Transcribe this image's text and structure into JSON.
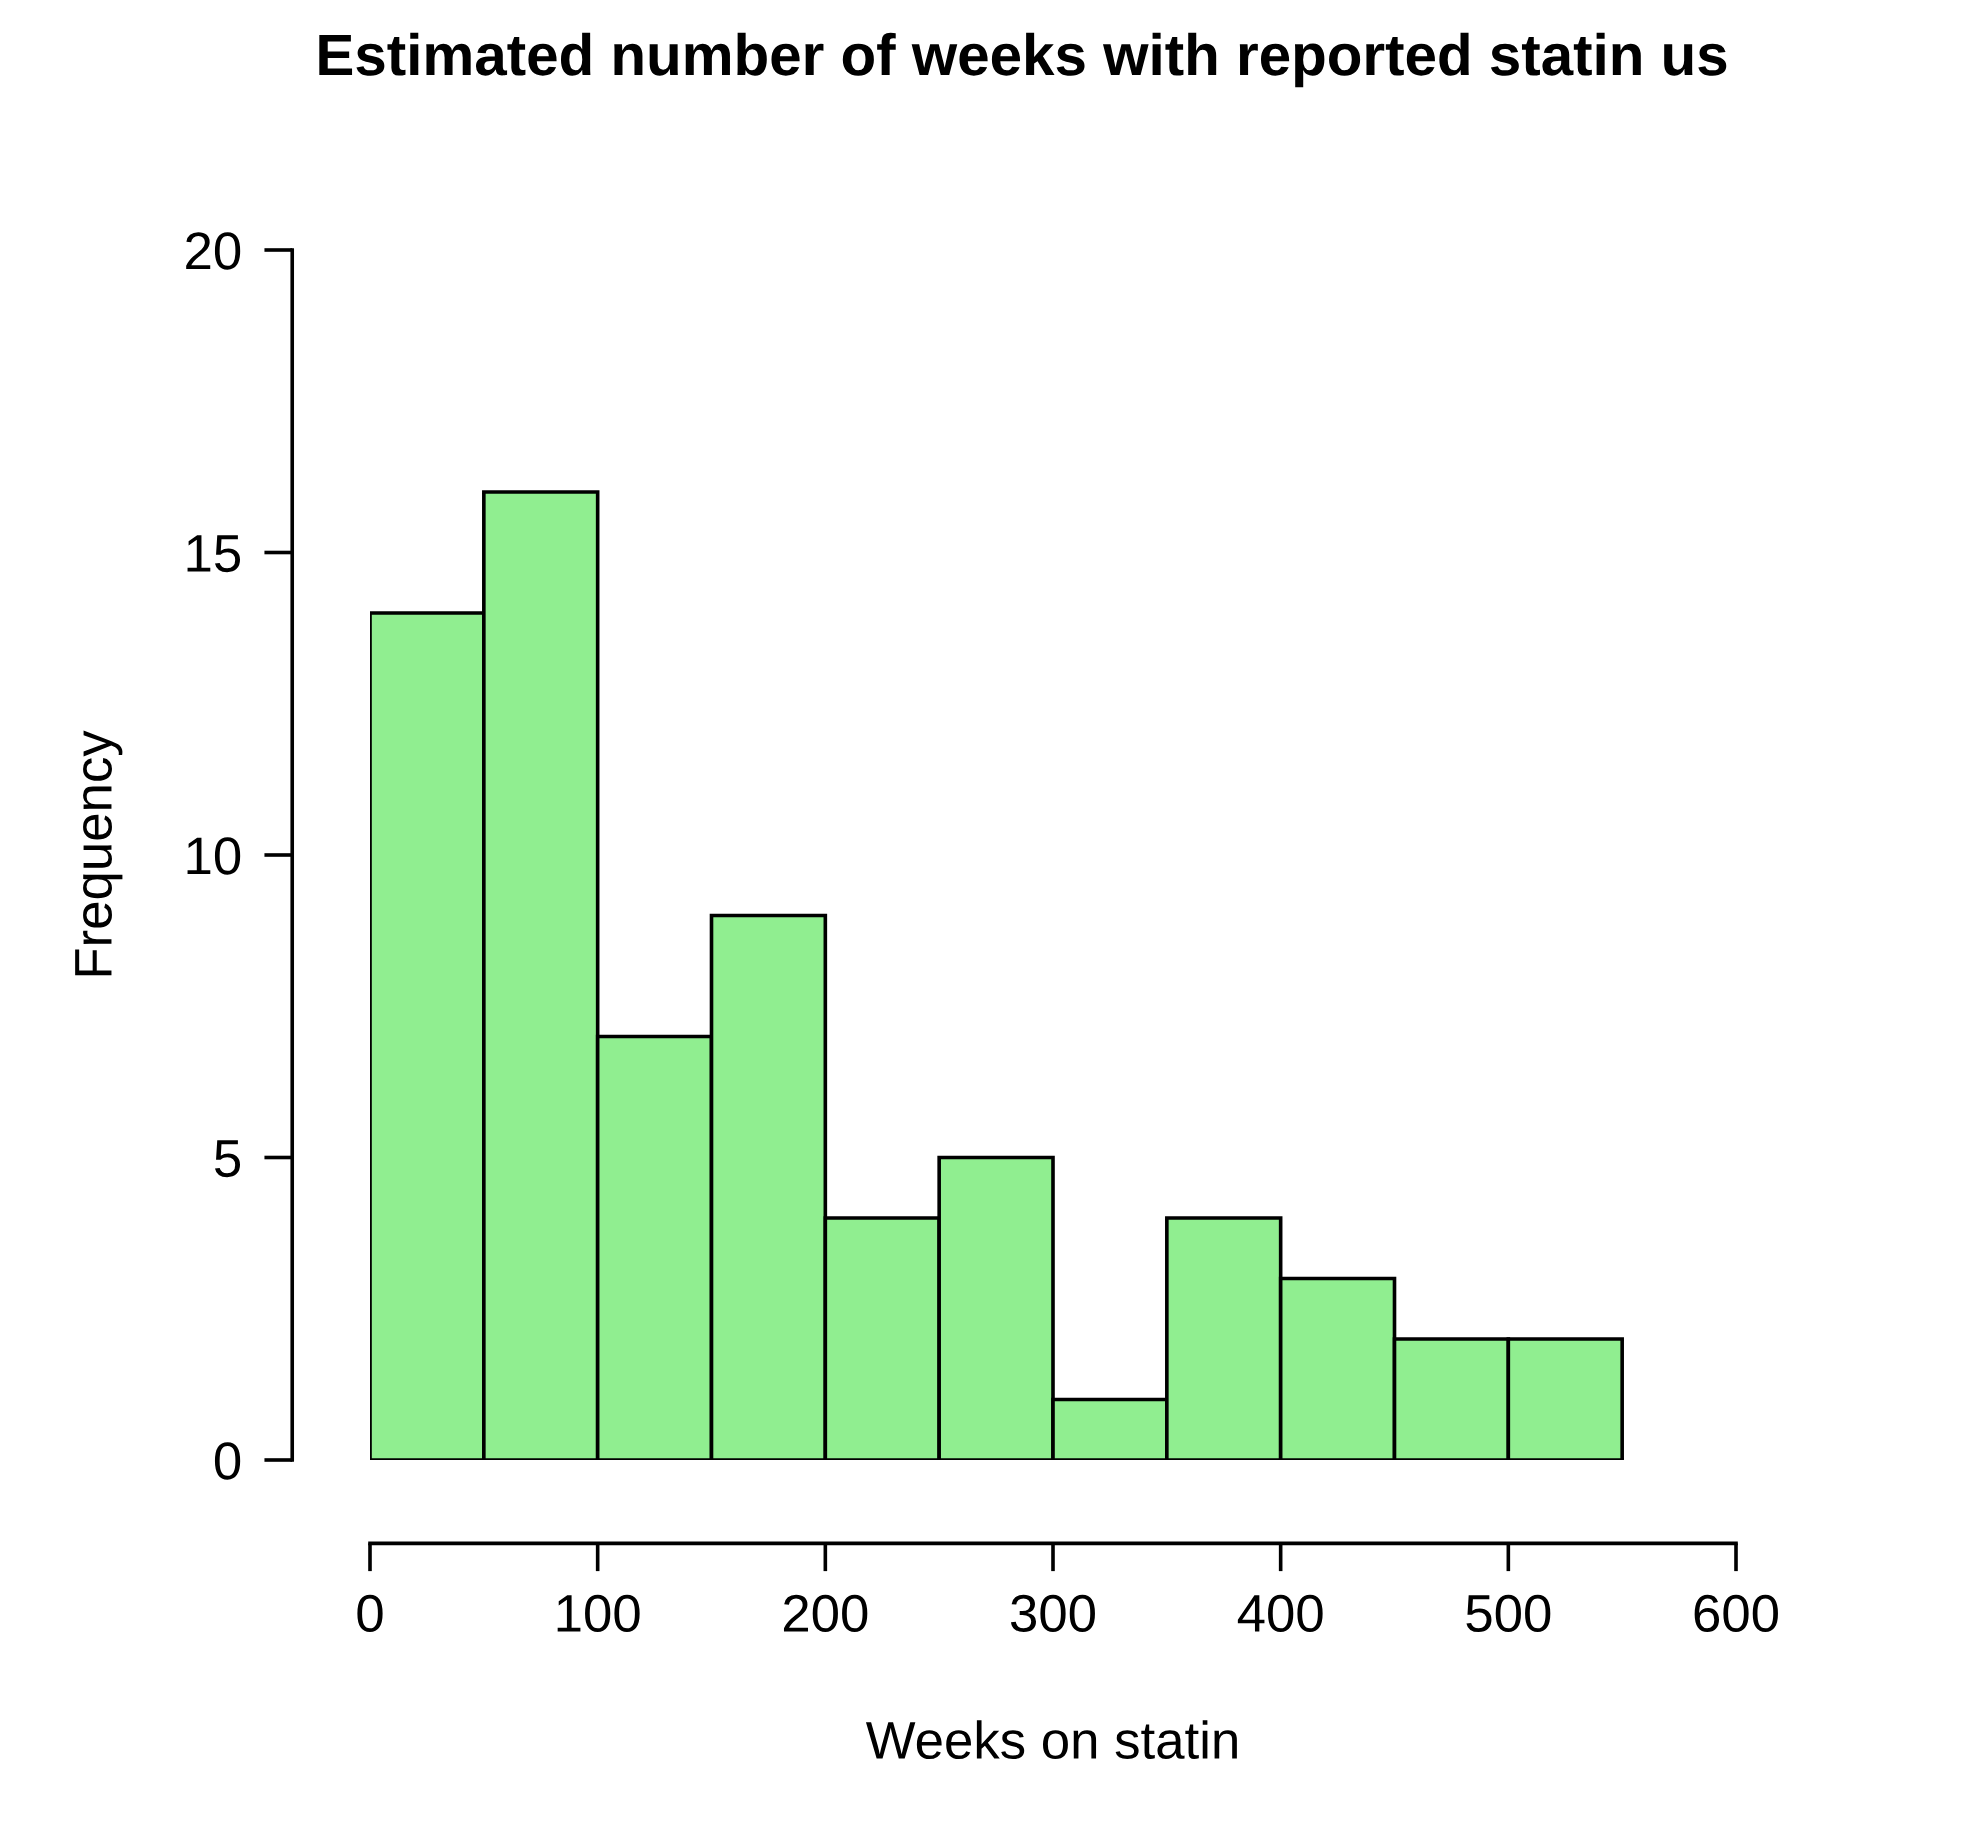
{
  "chart_data": {
    "type": "histogram",
    "title": "Estimated number of weeks with reported statin us",
    "xlabel": "Weeks on statin",
    "ylabel": "Frequency",
    "bins": [
      0,
      50,
      100,
      150,
      200,
      250,
      300,
      350,
      400,
      450,
      500,
      550
    ],
    "values": [
      14,
      16,
      7,
      9,
      4,
      5,
      1,
      4,
      3,
      2,
      2
    ],
    "color": "#90ee90",
    "xlim": [
      0,
      600
    ],
    "xticks": [
      0,
      100,
      200,
      300,
      400,
      500,
      600
    ],
    "ylim": [
      0,
      20
    ],
    "yticks": [
      0,
      5,
      10,
      15,
      20
    ],
    "grid": false
  }
}
